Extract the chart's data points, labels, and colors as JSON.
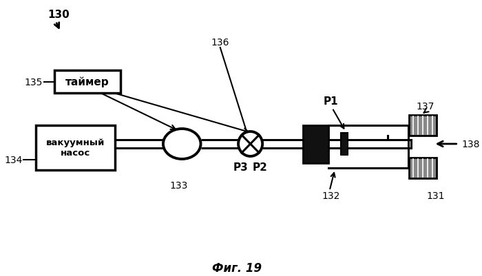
{
  "bg": "#ffffff",
  "lc": "#000000",
  "dc": "#111111",
  "fig_title": "Фиг. 19",
  "text_timer": "таймер",
  "text_vacuum": "вакуумный\nнасос",
  "lbl_130": "130",
  "lbl_131": "131",
  "lbl_132": "132",
  "lbl_133": "133",
  "lbl_134": "134",
  "lbl_135": "135",
  "lbl_136": "136",
  "lbl_137": "137",
  "lbl_138": "138",
  "lbl_P1": "P1",
  "lbl_P2": "P2",
  "lbl_P3": "P3"
}
